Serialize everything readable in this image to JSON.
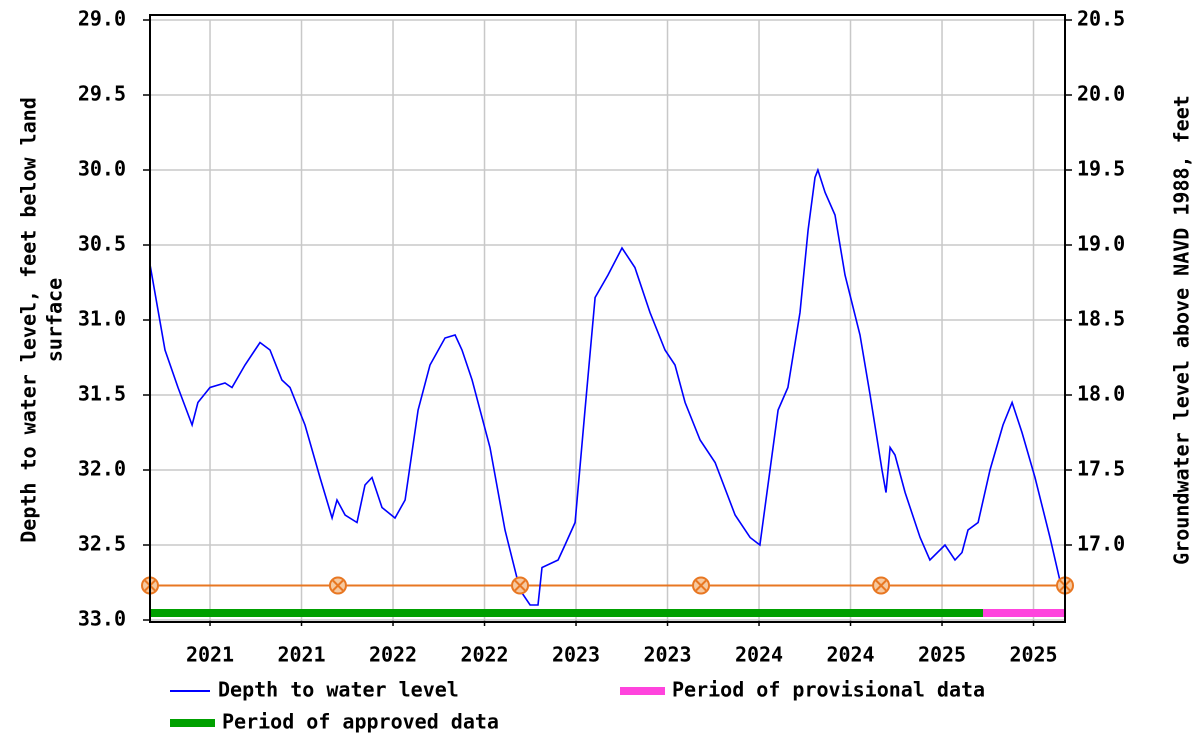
{
  "chart_data": {
    "type": "line",
    "y_label": [
      "Depth to water level, feet below land",
      "surface"
    ],
    "y2_label": "Groundwater level above NAVD 1988, feet",
    "xlim": [
      2020.672,
      2025.672
    ],
    "xticks": [
      {
        "value": 2021.0,
        "label": "2021"
      },
      {
        "value": 2021.5,
        "label": "2021"
      },
      {
        "value": 2022.0,
        "label": "2022"
      },
      {
        "value": 2022.5,
        "label": "2022"
      },
      {
        "value": 2023.0,
        "label": "2023"
      },
      {
        "value": 2023.5,
        "label": "2023"
      },
      {
        "value": 2024.0,
        "label": "2024"
      },
      {
        "value": 2024.5,
        "label": "2024"
      },
      {
        "value": 2025.0,
        "label": "2025"
      },
      {
        "value": 2025.5,
        "label": "2025"
      }
    ],
    "ylim": [
      33.0,
      29.0
    ],
    "yticks": [
      {
        "value": 29,
        "label": "29.0"
      },
      29.5,
      {
        "value": 30,
        "label": "30.0"
      },
      30.5,
      {
        "value": 31,
        "label": "31.0"
      },
      31.5,
      {
        "value": 32,
        "label": "32.0"
      },
      32.5,
      {
        "value": 33,
        "label": "33.0"
      }
    ],
    "y2lim": [
      16.5,
      20.5
    ],
    "y2ticks": [
      {
        "value": 17,
        "label": "17.0"
      },
      17.5,
      {
        "value": 18,
        "label": "18.0"
      },
      18.5,
      {
        "value": 19,
        "label": "19.0"
      },
      19.5,
      {
        "value": 20,
        "label": "20.0"
      },
      20.5
    ],
    "grid": true,
    "series": [
      {
        "name": "Depth to water level",
        "color": "#0000ff",
        "x": [
          2020.672,
          2020.754,
          2020.825,
          2020.902,
          2020.934,
          2021.0,
          2021.082,
          2021.12,
          2021.191,
          2021.273,
          2021.328,
          2021.393,
          2021.437,
          2021.519,
          2021.601,
          2021.667,
          2021.694,
          2021.738,
          2021.803,
          2021.847,
          2021.885,
          2021.94,
          2022.011,
          2022.066,
          2022.137,
          2022.202,
          2022.284,
          2022.339,
          2022.377,
          2022.432,
          2022.53,
          2022.612,
          2022.694,
          2022.749,
          2022.792,
          2022.814,
          2022.902,
          2022.94,
          2022.995,
          2023.049,
          2023.104,
          2023.175,
          2023.251,
          2023.322,
          2023.404,
          2023.486,
          2023.541,
          2023.596,
          2023.678,
          2023.76,
          2023.869,
          2023.951,
          2024.005,
          2024.06,
          2024.104,
          2024.158,
          2024.224,
          2024.268,
          2024.306,
          2024.322,
          2024.361,
          2024.415,
          2024.47,
          2024.552,
          2024.607,
          2024.672,
          2024.694,
          2024.716,
          2024.743,
          2024.798,
          2024.88,
          2024.934,
          2025.016,
          2025.071,
          2025.109,
          2025.142,
          2025.197,
          2025.262,
          2025.333,
          2025.383,
          2025.437,
          2025.508,
          2025.59,
          2025.656
        ],
        "values": [
          30.63,
          31.2,
          31.45,
          31.7,
          31.55,
          31.45,
          31.42,
          31.45,
          31.3,
          31.15,
          31.2,
          31.4,
          31.45,
          31.7,
          32.05,
          32.32,
          32.2,
          32.3,
          32.35,
          32.1,
          32.05,
          32.25,
          32.32,
          32.2,
          31.6,
          31.3,
          31.12,
          31.1,
          31.2,
          31.4,
          31.85,
          32.4,
          32.8,
          32.9,
          32.9,
          32.65,
          32.6,
          32.5,
          32.35,
          31.6,
          30.85,
          30.7,
          30.52,
          30.65,
          30.95,
          31.2,
          31.3,
          31.55,
          31.8,
          31.95,
          32.3,
          32.45,
          32.5,
          32.0,
          31.6,
          31.45,
          30.95,
          30.4,
          30.05,
          30.0,
          30.15,
          30.3,
          30.7,
          31.1,
          31.5,
          32.0,
          32.15,
          31.85,
          31.9,
          32.15,
          32.45,
          32.6,
          32.5,
          32.6,
          32.55,
          32.4,
          32.35,
          32.0,
          31.7,
          31.55,
          31.75,
          32.05,
          32.45,
          32.8
        ]
      },
      {
        "name": "Period of provisional data",
        "color": "#ff44dd",
        "x": [
          2025.224,
          2025.672
        ]
      },
      {
        "name": "Period of approved data",
        "color": "#00a000",
        "x": [
          2020.672,
          2025.224
        ]
      }
    ],
    "hline": {
      "y": 32.77,
      "color": "#e87722",
      "marker_x": [
        2020.672,
        2021.699,
        2022.694,
        2023.683,
        2024.667,
        2025.672
      ]
    }
  }
}
